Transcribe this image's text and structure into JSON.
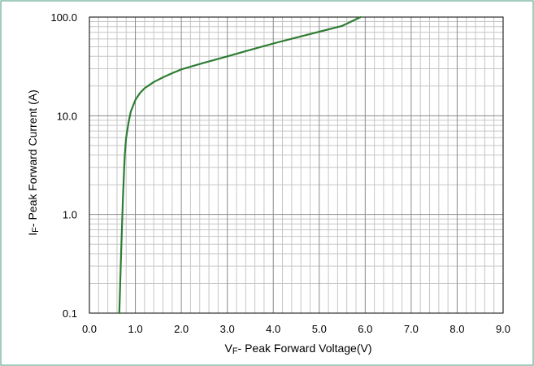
{
  "chart_data": {
    "type": "line",
    "title": "",
    "xlabel": {
      "main": "V",
      "sub": "F",
      "rest": "- Peak Forward Voltage(V)"
    },
    "ylabel": {
      "main": "I",
      "sub": "F",
      "rest": "- Peak Forward Current (A)"
    },
    "x_scale": "linear",
    "y_scale": "log",
    "xlim": [
      0,
      9
    ],
    "ylim": [
      0.1,
      100
    ],
    "x_ticks": [
      "0.0",
      "1.0",
      "2.0",
      "3.0",
      "4.0",
      "5.0",
      "6.0",
      "7.0",
      "8.0",
      "9.0"
    ],
    "y_ticks": [
      "0.1",
      "1.0",
      "10.0",
      "100.0"
    ],
    "grid": true,
    "legend": "none",
    "series": [
      {
        "color": "#2e7d32",
        "points": [
          [
            0.65,
            0.1
          ],
          [
            0.67,
            0.2
          ],
          [
            0.69,
            0.4
          ],
          [
            0.71,
            0.8
          ],
          [
            0.73,
            1.5
          ],
          [
            0.75,
            2.5
          ],
          [
            0.77,
            4.0
          ],
          [
            0.8,
            6.0
          ],
          [
            0.85,
            8.5
          ],
          [
            0.9,
            11.0
          ],
          [
            1.0,
            14.5
          ],
          [
            1.1,
            17.0
          ],
          [
            1.2,
            19.0
          ],
          [
            1.4,
            22.0
          ],
          [
            1.6,
            24.5
          ],
          [
            1.8,
            27.0
          ],
          [
            2.0,
            29.5
          ],
          [
            2.5,
            34.5
          ],
          [
            3.0,
            40.0
          ],
          [
            3.5,
            46.5
          ],
          [
            4.0,
            54.0
          ],
          [
            4.5,
            62.0
          ],
          [
            5.0,
            71.0
          ],
          [
            5.5,
            81.5
          ],
          [
            5.9,
            100.0
          ]
        ]
      }
    ]
  }
}
